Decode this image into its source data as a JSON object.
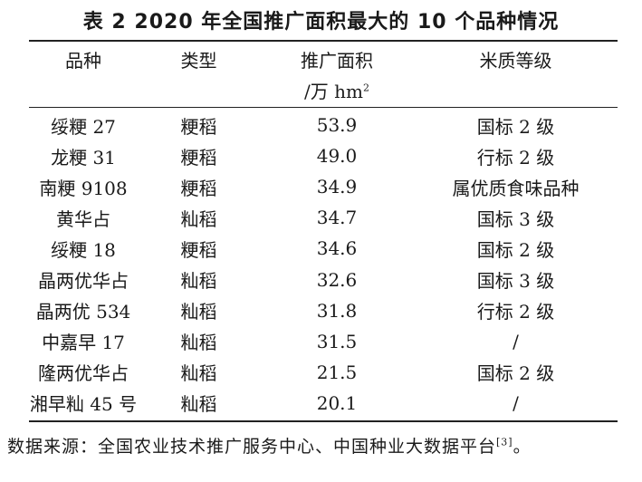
{
  "title": "表 2  2020 年全国推广面积最大的 10 个品种情况",
  "headers": {
    "variety": "品种",
    "type": "类型",
    "area": "推广面积",
    "area_unit": "/万 hm",
    "area_unit_sup": "2",
    "quality": "米质等级"
  },
  "rows": [
    {
      "variety": "绥粳 27",
      "type": "粳稻",
      "area": "53.9",
      "quality": "国标 2 级"
    },
    {
      "variety": "龙粳 31",
      "type": "粳稻",
      "area": "49.0",
      "quality": "行标 2 级"
    },
    {
      "variety": "南粳 9108",
      "type": "粳稻",
      "area": "34.9",
      "quality": "属优质食味品种"
    },
    {
      "variety": "黄华占",
      "type": "籼稻",
      "area": "34.7",
      "quality": "国标 3 级"
    },
    {
      "variety": "绥粳 18",
      "type": "粳稻",
      "area": "34.6",
      "quality": "国标 2 级"
    },
    {
      "variety": "晶两优华占",
      "type": "籼稻",
      "area": "32.6",
      "quality": "国标 3 级"
    },
    {
      "variety": "晶两优 534",
      "type": "籼稻",
      "area": "31.8",
      "quality": "行标 2 级"
    },
    {
      "variety": "中嘉早 17",
      "type": "籼稻",
      "area": "31.5",
      "quality": "/"
    },
    {
      "variety": "隆两优华占",
      "type": "籼稻",
      "area": "21.5",
      "quality": "国标 2 级"
    },
    {
      "variety": "湘早籼 45 号",
      "type": "籼稻",
      "area": "20.1",
      "quality": "/"
    }
  ],
  "footnote": {
    "text": "数据来源：全国农业技术推广服务中心、中国种业大数据平台",
    "ref": "[3]",
    "end": "。"
  }
}
